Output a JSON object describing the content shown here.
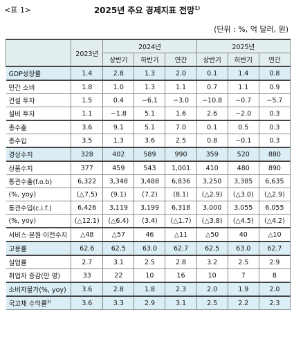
{
  "header": {
    "label": "<표 1>",
    "title": "2025년 주요 경제지표 전망",
    "title_note": "1)",
    "unit": "(단위 : %, 억 달러, 원)"
  },
  "table": {
    "columns": {
      "y2023": "2023년",
      "y2024": "2024년",
      "y2025": "2025년",
      "sub2024": [
        "상반기",
        "하반기",
        "연간"
      ],
      "sub2025": [
        "상반기",
        "하반기",
        "연간"
      ]
    },
    "groups": [
      {
        "rows": [
          {
            "label": "GDP성장률",
            "highlight": true,
            "values": [
              "1.4",
              "2.8",
              "1.3",
              "2.0",
              "0.1",
              "1.4",
              "0.8"
            ]
          }
        ]
      },
      {
        "rows": [
          {
            "label": "민간 소비",
            "highlight": false,
            "values": [
              "1.8",
              "1.0",
              "1.3",
              "1.1",
              "0.7",
              "1.1",
              "0.9"
            ]
          },
          {
            "label": "건설 투자",
            "highlight": false,
            "values": [
              "1.5",
              "0.4",
              "−6.1",
              "−3.0",
              "−10.8",
              "−0.7",
              "−5.7"
            ]
          },
          {
            "label": "설비 투자",
            "highlight": false,
            "values": [
              "1.1",
              "−1.8",
              "5.1",
              "1.6",
              "2.6",
              "−2.0",
              "0.3"
            ]
          }
        ]
      },
      {
        "rows": [
          {
            "label": "총수출",
            "highlight": false,
            "values": [
              "3.6",
              "9.1",
              "5.1",
              "7.0",
              "0.1",
              "0.5",
              "0.3"
            ]
          },
          {
            "label": "총수입",
            "highlight": false,
            "values": [
              "3.5",
              "1.3",
              "3.6",
              "2.5",
              "0.8",
              "−0.1",
              "0.3"
            ]
          }
        ]
      },
      {
        "rows": [
          {
            "label": "경상수지",
            "highlight": true,
            "values": [
              "328",
              "402",
              "589",
              "990",
              "359",
              "520",
              "880"
            ]
          }
        ]
      },
      {
        "rows": [
          {
            "label": "상품수지",
            "highlight": false,
            "values": [
              "377",
              "459",
              "543",
              "1,001",
              "410",
              "480",
              "890"
            ]
          },
          {
            "label": "통관수출(f.o.b)",
            "highlight": false,
            "values": [
              "6,322",
              "3,348",
              "3,488",
              "6,836",
              "3,250",
              "3,385",
              "6,635"
            ]
          },
          {
            "label": "(%, yoy)",
            "highlight": false,
            "values": [
              "(△7.5)",
              "(9.1)",
              "(7.2)",
              "(8.1)",
              "(△2.9)",
              "(△3.0)",
              "(△2.9)"
            ]
          },
          {
            "label": "통관수입(c.i.f.)",
            "highlight": false,
            "values": [
              "6,426",
              "3,119",
              "3,199",
              "6,318",
              "3,000",
              "3,055",
              "6,055"
            ]
          },
          {
            "label": "(%, yoy)",
            "highlight": false,
            "values": [
              "(△12.1)",
              "(△6.4)",
              "(3.4)",
              "(△1.7)",
              "(△3.8)",
              "(△4.5)",
              "(△4.2)"
            ]
          }
        ]
      },
      {
        "rows": [
          {
            "label": "서비스·본원·이전수지",
            "highlight": false,
            "values": [
              "△48",
              "△57",
              "46",
              "△11",
              "△50",
              "40",
              "△10"
            ]
          }
        ]
      },
      {
        "rows": [
          {
            "label": "고용률",
            "highlight": true,
            "values": [
              "62.6",
              "62.5",
              "63.0",
              "62.7",
              "62.5",
              "63.0",
              "62.7"
            ]
          }
        ]
      },
      {
        "rows": [
          {
            "label": "실업률",
            "highlight": false,
            "values": [
              "2.7",
              "3.1",
              "2.5",
              "2.8",
              "3.2",
              "2.5",
              "2.9"
            ]
          },
          {
            "label": "취업자 증감(만 명)",
            "highlight": false,
            "values": [
              "33",
              "22",
              "10",
              "16",
              "10",
              "7",
              "8"
            ]
          }
        ]
      },
      {
        "rows": [
          {
            "label": "소비자물가(%, yoy)",
            "highlight": true,
            "values": [
              "3.6",
              "2.8",
              "1.8",
              "2.3",
              "2.0",
              "1.9",
              "2.0"
            ]
          }
        ]
      },
      {
        "rows": [
          {
            "label": "국고채 수익률",
            "label_note": "3)",
            "highlight": true,
            "values": [
              "3.6",
              "3.3",
              "2.9",
              "3.1",
              "2.5",
              "2.2",
              "2.3"
            ]
          }
        ]
      }
    ]
  }
}
